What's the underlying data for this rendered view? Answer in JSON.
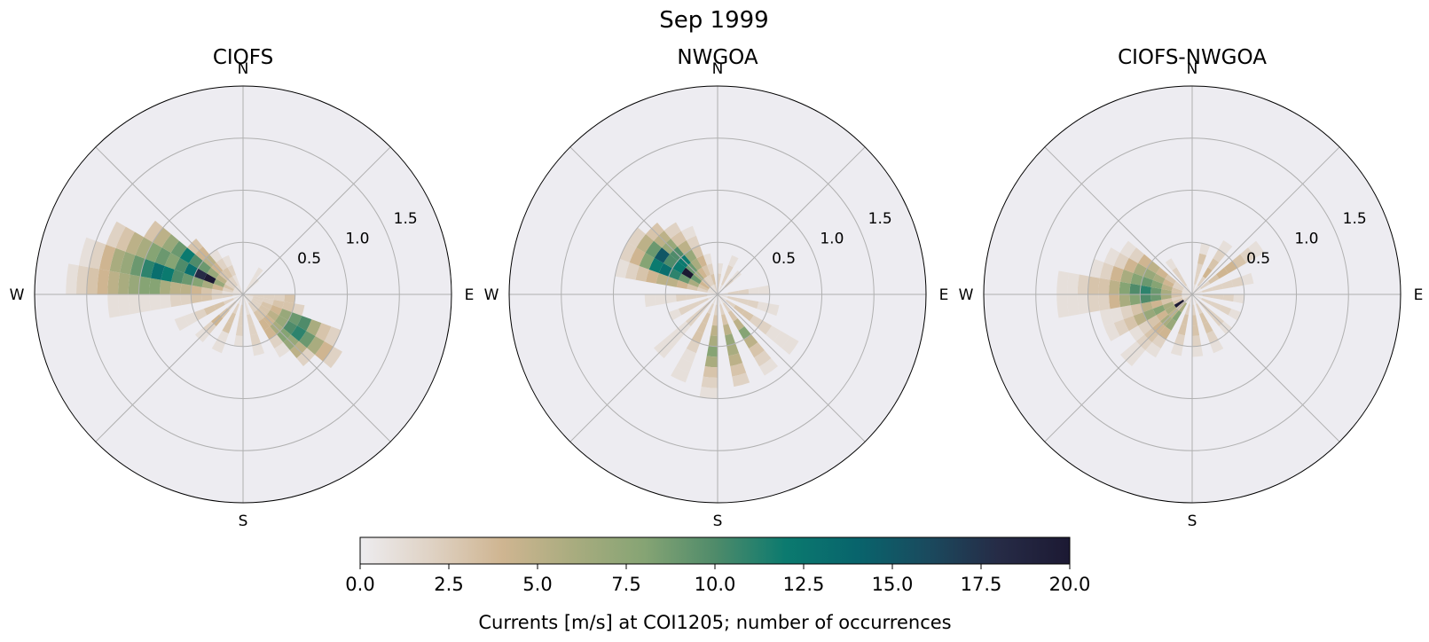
{
  "figure": {
    "suptitle": "Sep 1999",
    "colorbar": {
      "label": "Currents [m/s] at COI1205; number of occurrences",
      "range": [
        0,
        20
      ],
      "ticks": [
        "0.0",
        "2.5",
        "5.0",
        "7.5",
        "10.0",
        "12.5",
        "15.0",
        "17.5",
        "20.0"
      ],
      "colors": [
        "#edecef",
        "#dfd2c4",
        "#cfb591",
        "#a9ac7f",
        "#86a474",
        "#4f8b6a",
        "#0b7a6f",
        "#08646c",
        "#1a4a5e",
        "#262b46",
        "#1c1933"
      ]
    }
  },
  "chart_data": [
    {
      "type": "heatmap",
      "subtype": "polar-rose-histogram",
      "title": "CIOFS",
      "directions": [
        "N",
        "E",
        "S",
        "W"
      ],
      "radial_ticks": [
        "0.5",
        "1.0",
        "1.5"
      ],
      "rlim": [
        0,
        2.0
      ],
      "speed_bin_width": 0.1,
      "direction_bin_width_deg": 10,
      "units": "number of occurrences",
      "bins": [
        {
          "theta": 275,
          "counts": [
            1,
            1,
            2,
            3,
            4,
            5,
            5,
            6,
            8,
            8,
            7,
            6,
            5,
            4,
            3,
            2,
            1
          ]
        },
        {
          "theta": 285,
          "counts": [
            1,
            2,
            4,
            6,
            8,
            9,
            10,
            12,
            13,
            11,
            9,
            7,
            6,
            4,
            2,
            1
          ]
        },
        {
          "theta": 295,
          "counts": [
            1,
            3,
            7,
            20,
            18,
            13,
            10,
            8,
            9,
            8,
            6,
            5,
            3,
            2
          ]
        },
        {
          "theta": 305,
          "counts": [
            1,
            2,
            5,
            7,
            9,
            10,
            12,
            9,
            7,
            5,
            3
          ]
        },
        {
          "theta": 315,
          "counts": [
            1,
            2,
            3,
            4,
            5,
            4,
            3
          ]
        },
        {
          "theta": 325,
          "counts": [
            1,
            2,
            3,
            2,
            1
          ]
        },
        {
          "theta": 335,
          "counts": [
            1,
            1,
            2,
            1
          ]
        },
        {
          "theta": 35,
          "counts": [
            1,
            1,
            1
          ]
        },
        {
          "theta": 45,
          "counts": [
            1,
            1
          ]
        },
        {
          "theta": 95,
          "counts": [
            2,
            2,
            2,
            2,
            3
          ]
        },
        {
          "theta": 105,
          "counts": [
            1,
            2,
            2,
            3,
            3,
            2
          ]
        },
        {
          "theta": 115,
          "counts": [
            1,
            2,
            3,
            4,
            7,
            9,
            10,
            6,
            3,
            2
          ]
        },
        {
          "theta": 125,
          "counts": [
            1,
            2,
            3,
            5,
            7,
            10,
            11,
            9,
            6,
            4,
            2
          ]
        },
        {
          "theta": 135,
          "counts": [
            1,
            2,
            3,
            4,
            6,
            8,
            7,
            5,
            2
          ]
        },
        {
          "theta": 145,
          "counts": [
            1,
            2,
            3,
            4,
            4,
            2,
            1
          ]
        },
        {
          "theta": 165,
          "counts": [
            1,
            1,
            2,
            2,
            2,
            1
          ]
        },
        {
          "theta": 185,
          "counts": [
            1,
            2,
            2,
            2,
            1
          ]
        },
        {
          "theta": 205,
          "counts": [
            1,
            2,
            3,
            3,
            1,
            1
          ]
        },
        {
          "theta": 225,
          "counts": [
            1,
            2,
            3,
            4,
            2,
            1
          ]
        },
        {
          "theta": 245,
          "counts": [
            1,
            2,
            3,
            3,
            2,
            1,
            1
          ]
        },
        {
          "theta": 265,
          "counts": [
            1,
            2,
            2,
            3,
            3,
            2,
            2,
            1,
            1,
            1,
            1,
            1,
            1
          ]
        }
      ]
    },
    {
      "type": "heatmap",
      "subtype": "polar-rose-histogram",
      "title": "NWGOA",
      "directions": [
        "N",
        "E",
        "S",
        "W"
      ],
      "radial_ticks": [
        "0.5",
        "1.0",
        "1.5"
      ],
      "rlim": [
        0,
        2.0
      ],
      "speed_bin_width": 0.1,
      "direction_bin_width_deg": 10,
      "units": "number of occurrences",
      "bins": [
        {
          "theta": 285,
          "counts": [
            1,
            2,
            3,
            4,
            5,
            5,
            4,
            3,
            2,
            1
          ]
        },
        {
          "theta": 295,
          "counts": [
            1,
            3,
            6,
            9,
            11,
            13,
            12,
            8,
            4,
            2
          ]
        },
        {
          "theta": 305,
          "counts": [
            1,
            4,
            9,
            20,
            12,
            10,
            15,
            9,
            5,
            2
          ]
        },
        {
          "theta": 315,
          "counts": [
            1,
            3,
            6,
            9,
            12,
            10,
            7,
            5,
            3
          ]
        },
        {
          "theta": 325,
          "counts": [
            1,
            2,
            4,
            6,
            7,
            5,
            3,
            2
          ]
        },
        {
          "theta": 335,
          "counts": [
            1,
            2,
            3,
            4,
            3,
            2,
            1
          ]
        },
        {
          "theta": 345,
          "counts": [
            2,
            3,
            2,
            1
          ]
        },
        {
          "theta": 5,
          "counts": [
            2,
            2,
            1
          ]
        },
        {
          "theta": 25,
          "counts": [
            1,
            2,
            2,
            1
          ]
        },
        {
          "theta": 45,
          "counts": [
            1,
            2,
            1
          ]
        },
        {
          "theta": 85,
          "counts": [
            1,
            2,
            2,
            1,
            1
          ]
        },
        {
          "theta": 105,
          "counts": [
            1,
            2,
            2,
            2,
            1,
            1
          ]
        },
        {
          "theta": 125,
          "counts": [
            1,
            2,
            3,
            3,
            2,
            2,
            1,
            1,
            1
          ]
        },
        {
          "theta": 145,
          "counts": [
            1,
            2,
            3,
            5,
            8,
            5,
            3,
            2,
            1
          ]
        },
        {
          "theta": 165,
          "counts": [
            1,
            2,
            3,
            5,
            7,
            6,
            5,
            3,
            2
          ]
        },
        {
          "theta": 185,
          "counts": [
            1,
            2,
            3,
            5,
            6,
            8,
            6,
            3,
            2,
            1
          ]
        },
        {
          "theta": 205,
          "counts": [
            1,
            2,
            3,
            3,
            3,
            2,
            1,
            1,
            1
          ]
        },
        {
          "theta": 225,
          "counts": [
            1,
            2,
            2,
            2,
            1,
            1,
            1,
            1
          ]
        },
        {
          "theta": 245,
          "counts": [
            1,
            2,
            2,
            2,
            1
          ]
        },
        {
          "theta": 265,
          "counts": [
            1,
            2,
            2,
            2,
            1,
            1,
            1
          ]
        }
      ]
    },
    {
      "type": "heatmap",
      "subtype": "polar-rose-histogram",
      "title": "CIOFS-NWGOA",
      "directions": [
        "N",
        "E",
        "S",
        "W"
      ],
      "radial_ticks": [
        "0.5",
        "1.0",
        "1.5"
      ],
      "rlim": [
        0,
        2.0
      ],
      "speed_bin_width": 0.1,
      "direction_bin_width_deg": 10,
      "units": "number of occurrences",
      "bins": [
        {
          "theta": 255,
          "counts": [
            1,
            2,
            3,
            4,
            5,
            3,
            2,
            1,
            1
          ]
        },
        {
          "theta": 265,
          "counts": [
            1,
            3,
            6,
            9,
            10,
            8,
            6,
            4,
            2,
            2,
            1,
            1,
            1
          ]
        },
        {
          "theta": 275,
          "counts": [
            1,
            3,
            6,
            9,
            11,
            10,
            8,
            5,
            3,
            3,
            2,
            1,
            1
          ]
        },
        {
          "theta": 285,
          "counts": [
            1,
            3,
            5,
            8,
            9,
            8,
            6,
            4,
            2,
            1
          ]
        },
        {
          "theta": 295,
          "counts": [
            1,
            2,
            4,
            6,
            7,
            6,
            4,
            2,
            1
          ]
        },
        {
          "theta": 305,
          "counts": [
            1,
            2,
            3,
            4,
            5,
            4,
            2,
            1
          ]
        },
        {
          "theta": 325,
          "counts": [
            1,
            2,
            2,
            1
          ]
        },
        {
          "theta": 15,
          "counts": [
            1,
            2,
            2,
            3,
            1
          ]
        },
        {
          "theta": 35,
          "counts": [
            1,
            2,
            4,
            3,
            2,
            1
          ]
        },
        {
          "theta": 55,
          "counts": [
            1,
            2,
            3,
            4,
            4,
            3,
            2,
            1
          ]
        },
        {
          "theta": 75,
          "counts": [
            1,
            2,
            2,
            2,
            2,
            1
          ]
        },
        {
          "theta": 95,
          "counts": [
            1,
            2,
            2,
            2,
            1
          ]
        },
        {
          "theta": 115,
          "counts": [
            1,
            2,
            2,
            2,
            1
          ]
        },
        {
          "theta": 135,
          "counts": [
            1,
            2,
            2,
            2,
            1
          ]
        },
        {
          "theta": 155,
          "counts": [
            1,
            2,
            3,
            3,
            2,
            1
          ]
        },
        {
          "theta": 175,
          "counts": [
            1,
            2,
            3,
            3,
            2,
            1
          ]
        },
        {
          "theta": 195,
          "counts": [
            1,
            2,
            3,
            3,
            2,
            1
          ]
        },
        {
          "theta": 215,
          "counts": [
            1,
            6,
            8,
            7,
            4,
            2,
            1
          ]
        },
        {
          "theta": 225,
          "counts": [
            1,
            3,
            5,
            6,
            4,
            3,
            2,
            1,
            1
          ]
        },
        {
          "theta": 235,
          "counts": [
            2,
            20,
            6,
            4,
            3,
            2,
            1
          ]
        },
        {
          "theta": 245,
          "counts": [
            1,
            3,
            6,
            8,
            7,
            5,
            3,
            2,
            1
          ]
        }
      ]
    }
  ]
}
